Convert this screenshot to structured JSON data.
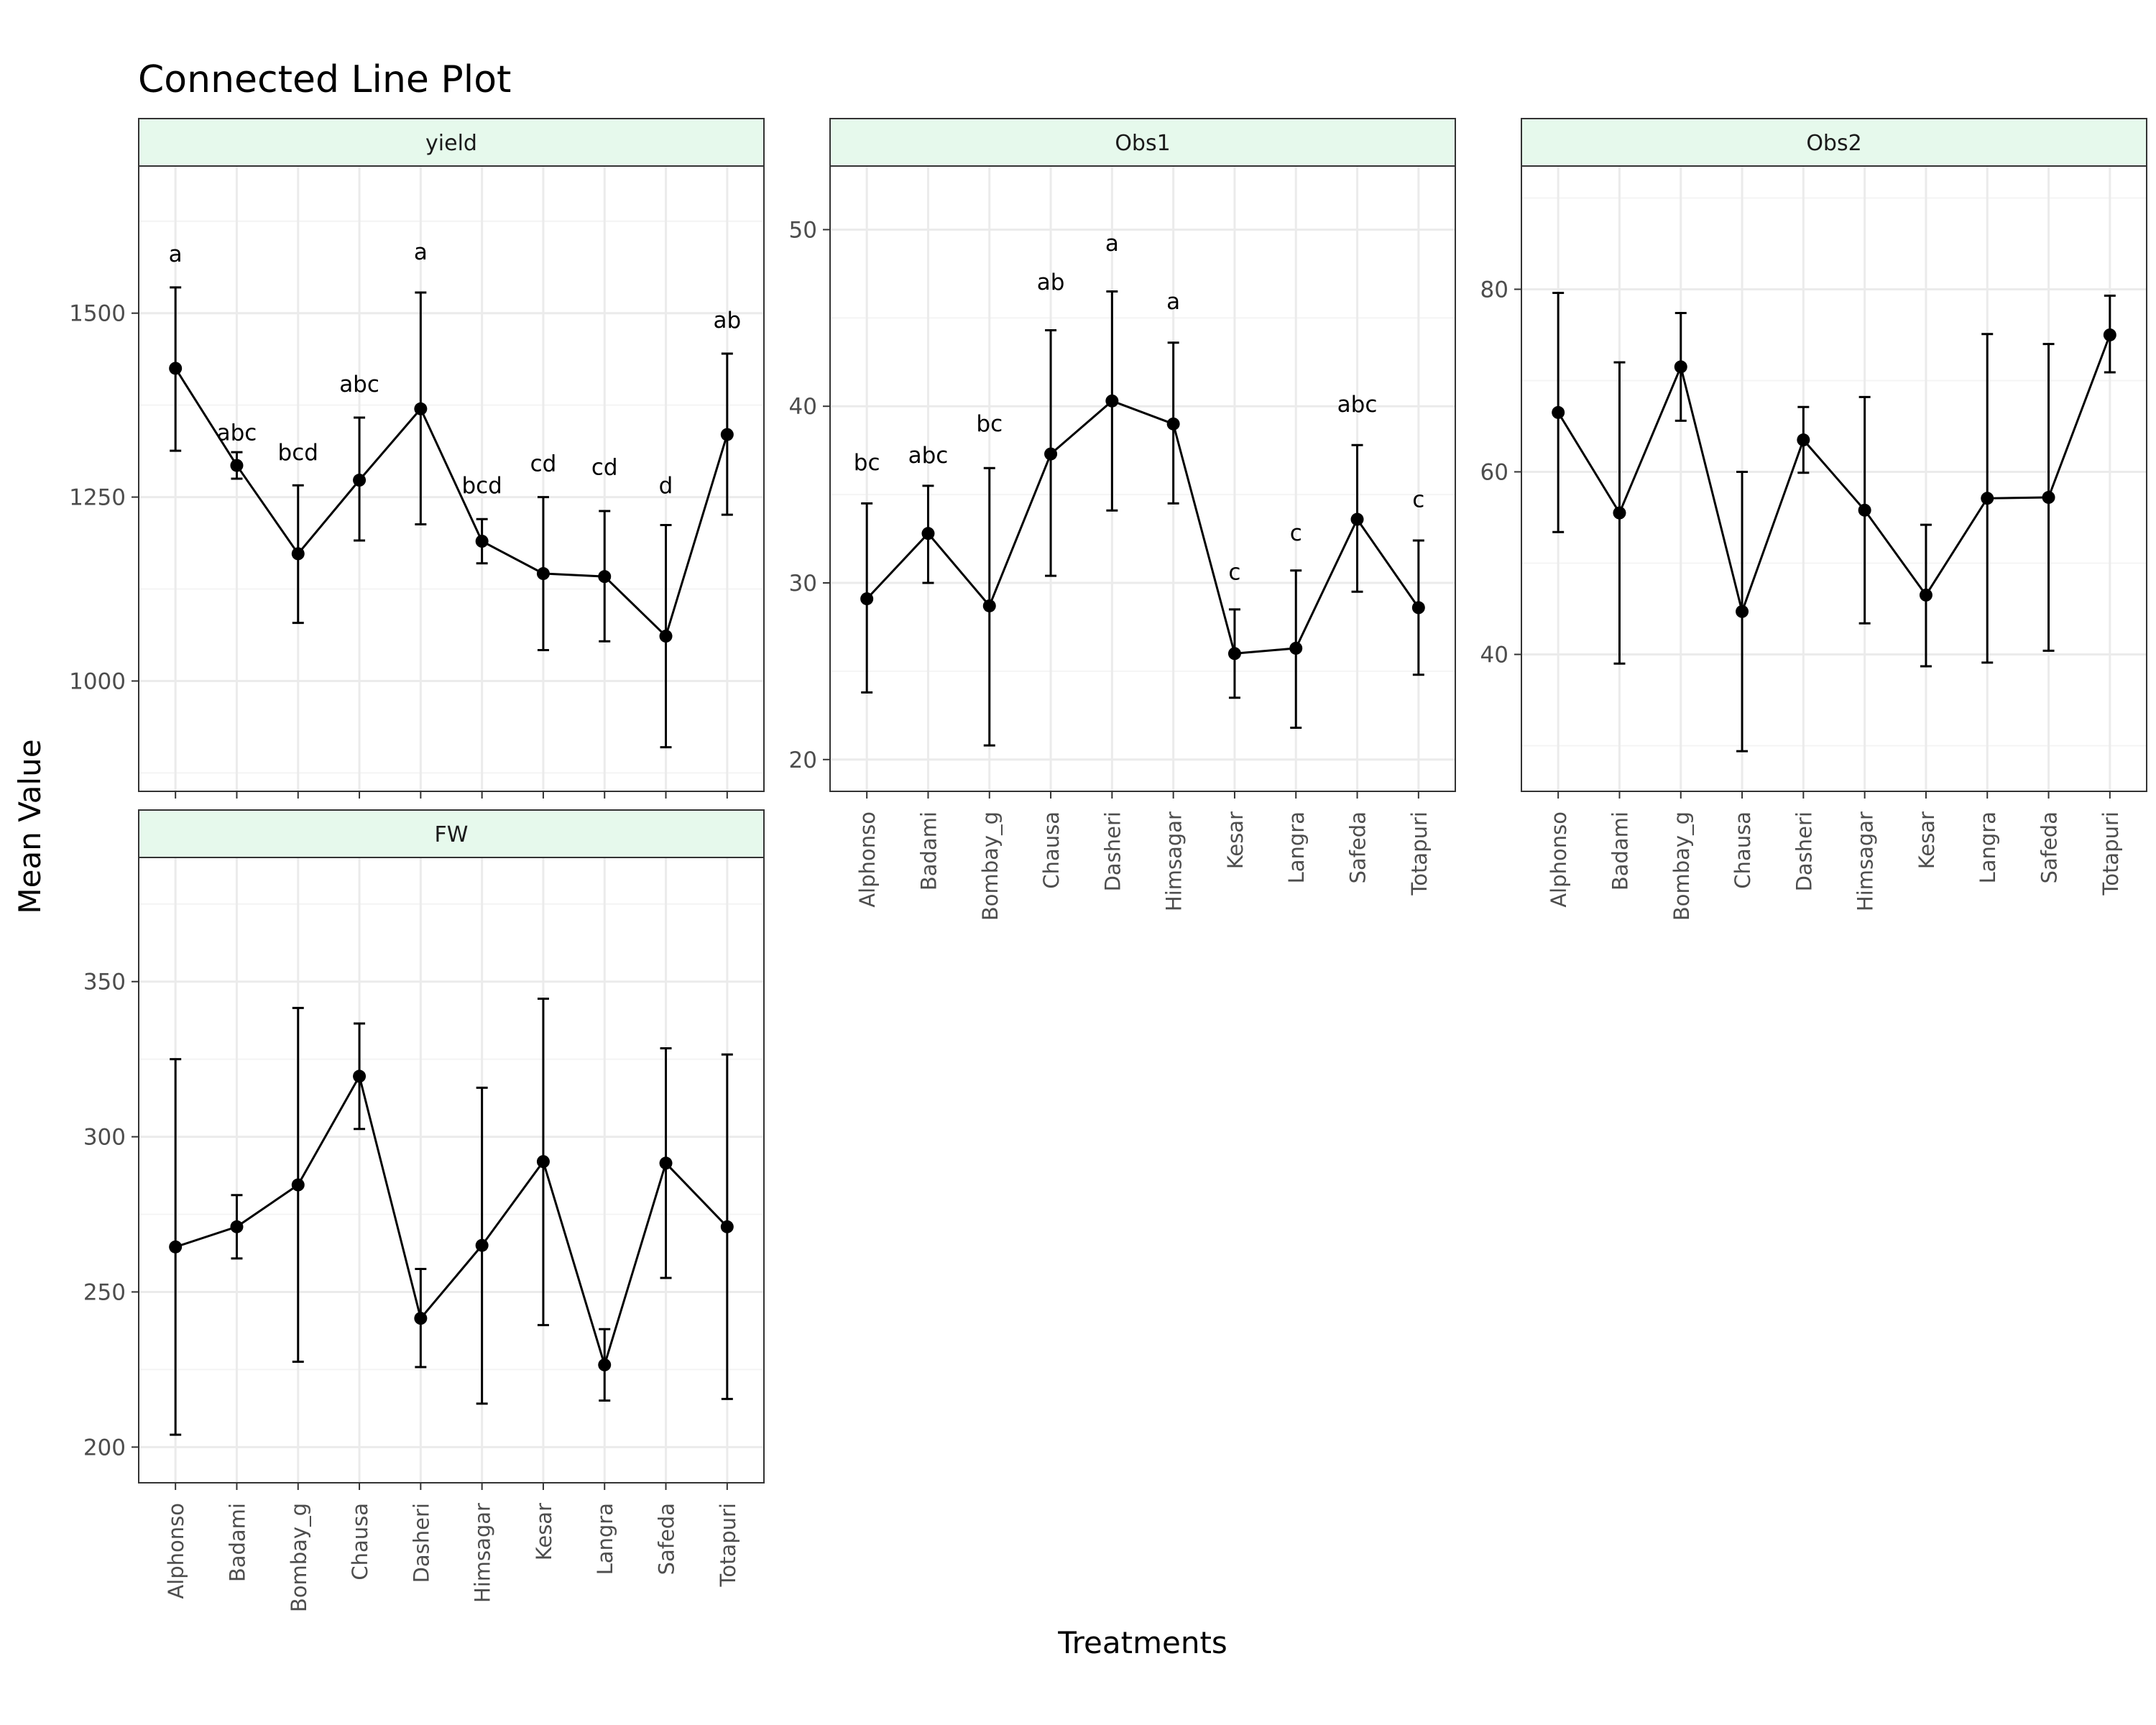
{
  "title": "Connected Line Plot",
  "ylabel": "Mean Value",
  "xlabel": "Treatments",
  "colors": {
    "strip_fill": "#e6f9ec",
    "panel_border": "#333333",
    "grid_major": "#ebebeb",
    "grid_minor": "#f4f4f4",
    "line": "#000000",
    "tick_text": "#4d4d4d"
  },
  "chart_data": [
    {
      "panel": "yield",
      "type": "line",
      "x": [
        "Alphonso",
        "Badami",
        "Bombay_g",
        "Chausa",
        "Dasheri",
        "Himsagar",
        "Kesar",
        "Langra",
        "Safeda",
        "Totapuri"
      ],
      "y": [
        1425,
        1293,
        1173,
        1273,
        1370,
        1190,
        1146,
        1142,
        1061,
        1335
      ],
      "lower": [
        1313,
        1275,
        1079,
        1191,
        1213,
        1160,
        1042,
        1054,
        910,
        1226
      ],
      "upper": [
        1535,
        1311,
        1266,
        1358,
        1528,
        1220,
        1250,
        1231,
        1212,
        1445
      ],
      "letters": [
        "a",
        "abc",
        "bcd",
        "abc",
        "a",
        "bcd",
        "cd",
        "cd",
        "d",
        "ab"
      ],
      "letter_y": [
        1580,
        1337,
        1310,
        1403,
        1583,
        1265,
        1295,
        1290,
        1265,
        1490
      ],
      "ylim": [
        850,
        1700
      ],
      "yticks": [
        1000,
        1250,
        1500
      ],
      "yminor": [
        875,
        1125,
        1375,
        1625
      ],
      "show_x_labels": false
    },
    {
      "panel": "Obs1",
      "type": "line",
      "x": [
        "Alphonso",
        "Badami",
        "Bombay_g",
        "Chausa",
        "Dasheri",
        "Himsagar",
        "Kesar",
        "Langra",
        "Safeda",
        "Totapuri"
      ],
      "y": [
        29.1,
        32.8,
        28.7,
        37.3,
        40.3,
        39.0,
        26.0,
        26.3,
        33.6,
        28.6
      ],
      "lower": [
        23.8,
        30.0,
        20.8,
        30.4,
        34.1,
        34.5,
        23.5,
        21.8,
        29.5,
        24.8
      ],
      "upper": [
        34.5,
        35.5,
        36.5,
        44.3,
        46.5,
        43.6,
        28.5,
        30.7,
        37.8,
        32.4
      ],
      "letters": [
        "bc",
        "abc",
        "bc",
        "ab",
        "a",
        "a",
        "c",
        "c",
        "abc",
        "c"
      ],
      "letter_y": [
        36.8,
        37.2,
        39.0,
        47.0,
        49.2,
        45.9,
        30.6,
        32.8,
        40.1,
        34.7
      ],
      "ylim": [
        18.2,
        53.6
      ],
      "yticks": [
        20,
        30,
        40,
        50
      ],
      "yminor": [
        25,
        35,
        45
      ],
      "show_x_labels": true
    },
    {
      "panel": "Obs2",
      "type": "line",
      "x": [
        "Alphonso",
        "Badami",
        "Bombay_g",
        "Chausa",
        "Dasheri",
        "Himsagar",
        "Kesar",
        "Langra",
        "Safeda",
        "Totapuri"
      ],
      "y": [
        66.5,
        55.5,
        71.5,
        44.7,
        63.5,
        55.8,
        46.5,
        57.1,
        57.2,
        75.0
      ],
      "lower": [
        53.4,
        39.0,
        65.6,
        29.4,
        59.9,
        43.4,
        38.7,
        39.1,
        40.4,
        70.9
      ],
      "upper": [
        79.6,
        72.0,
        77.4,
        60.0,
        67.1,
        68.2,
        54.2,
        75.1,
        74.0,
        79.3
      ],
      "letters": [],
      "letter_y": [],
      "ylim": [
        25.0,
        93.5
      ],
      "yticks": [
        40,
        60,
        80
      ],
      "yminor": [
        30,
        50,
        70,
        90
      ],
      "show_x_labels": true
    },
    {
      "panel": "FW",
      "type": "line",
      "x": [
        "Alphonso",
        "Badami",
        "Bombay_g",
        "Chausa",
        "Dasheri",
        "Himsagar",
        "Kesar",
        "Langra",
        "Safeda",
        "Totapuri"
      ],
      "y": [
        264.5,
        271.0,
        284.5,
        319.5,
        241.5,
        265.0,
        292.0,
        226.5,
        291.5,
        271.0
      ],
      "lower": [
        204.0,
        260.8,
        227.5,
        302.5,
        225.8,
        214.0,
        239.3,
        215.0,
        254.5,
        215.5
      ],
      "upper": [
        325.0,
        281.2,
        341.5,
        336.5,
        257.4,
        315.8,
        344.5,
        238.0,
        328.5,
        326.5
      ],
      "letters": [],
      "letter_y": [],
      "ylim": [
        188.5,
        390.0
      ],
      "yticks": [
        200,
        250,
        300,
        350
      ],
      "yminor": [
        225,
        275,
        325,
        375
      ],
      "show_x_labels": true
    }
  ]
}
